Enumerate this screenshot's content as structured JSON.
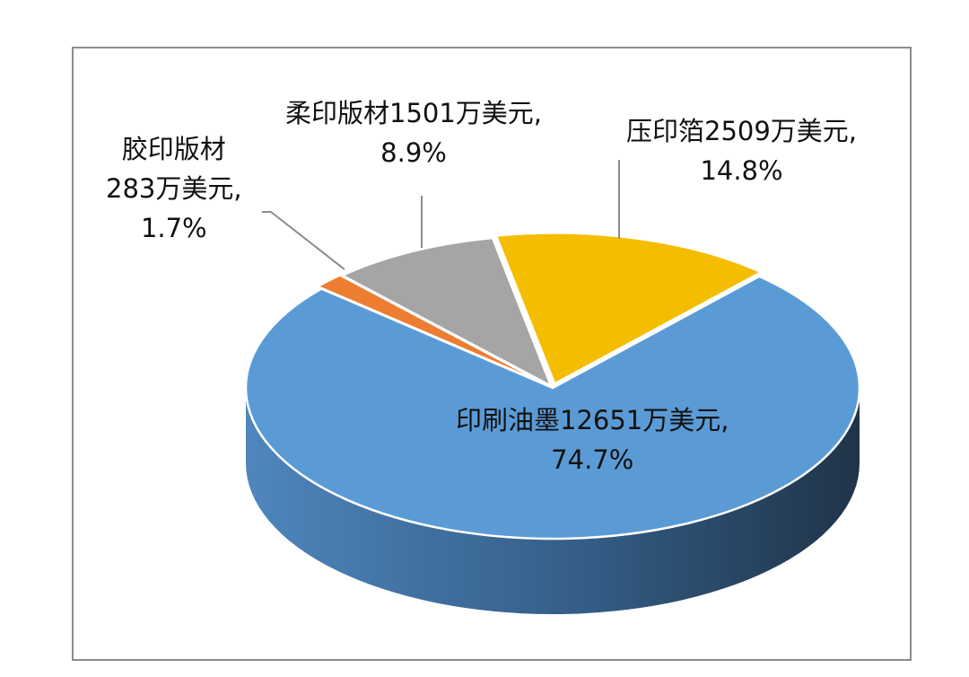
{
  "chart_data": {
    "type": "pie",
    "style": "3d",
    "title": "",
    "unit": "万美元",
    "slices": [
      {
        "name": "压印箔",
        "value": 2509,
        "percent": 14.8,
        "color": "#f5bd00",
        "label_lines": [
          "压印箔2509万美元,",
          "14.8%"
        ]
      },
      {
        "name": "印刷油墨",
        "value": 12651,
        "percent": 74.7,
        "color": "#5b9bd5",
        "label_lines": [
          "印刷油墨12651万美元,",
          "74.7%"
        ]
      },
      {
        "name": "胶印版材",
        "value": 283,
        "percent": 1.7,
        "color": "#ed7d31",
        "label_lines": [
          "胶印版材",
          "283万美元,",
          "1.7%"
        ]
      },
      {
        "name": "柔印版材",
        "value": 1501,
        "percent": 8.9,
        "color": "#a5a5a5",
        "label_lines": [
          "柔印版材1501万美元,",
          "8.9%"
        ]
      }
    ],
    "legend": "none",
    "grid": false
  }
}
